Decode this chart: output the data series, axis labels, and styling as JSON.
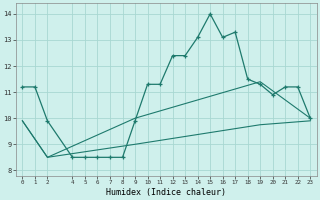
{
  "xlabel": "Humidex (Indice chaleur)",
  "bg_color": "#cff0ec",
  "grid_color": "#a8d8d2",
  "line_color": "#1e7a6d",
  "xlim": [
    -0.5,
    23.5
  ],
  "ylim": [
    7.8,
    14.4
  ],
  "xticks": [
    0,
    1,
    2,
    4,
    5,
    6,
    7,
    8,
    9,
    10,
    11,
    12,
    13,
    14,
    15,
    16,
    17,
    18,
    19,
    20,
    21,
    22,
    23
  ],
  "yticks": [
    8,
    9,
    10,
    11,
    12,
    13,
    14
  ],
  "line1_x": [
    0,
    1,
    2,
    4,
    5,
    6,
    7,
    8,
    9,
    10,
    11,
    12,
    13,
    14,
    15,
    16,
    17,
    18,
    19,
    20,
    21,
    22,
    23
  ],
  "line1_y": [
    11.2,
    11.2,
    9.9,
    8.5,
    8.5,
    8.5,
    8.5,
    8.5,
    9.9,
    11.3,
    11.3,
    12.4,
    12.4,
    13.1,
    14.0,
    13.1,
    13.3,
    11.5,
    11.3,
    10.9,
    11.2,
    11.2,
    10.0
  ],
  "line2_x": [
    0,
    2,
    9,
    19,
    23
  ],
  "line2_y": [
    9.9,
    8.5,
    10.0,
    11.4,
    10.0
  ],
  "line3_x": [
    0,
    2,
    9,
    19,
    23
  ],
  "line3_y": [
    9.9,
    8.5,
    9.0,
    9.75,
    9.9
  ],
  "markers_x": [
    0,
    1,
    2,
    4,
    5,
    6,
    7,
    8,
    9,
    10,
    11,
    12,
    13,
    14,
    15,
    16,
    17,
    18,
    19,
    20,
    21,
    22,
    23
  ],
  "markers_y": [
    11.2,
    11.2,
    9.9,
    8.5,
    8.5,
    8.5,
    8.5,
    8.5,
    9.9,
    11.3,
    11.3,
    12.4,
    12.4,
    13.1,
    14.0,
    13.1,
    13.3,
    11.5,
    11.3,
    10.9,
    11.2,
    11.2,
    10.0
  ]
}
